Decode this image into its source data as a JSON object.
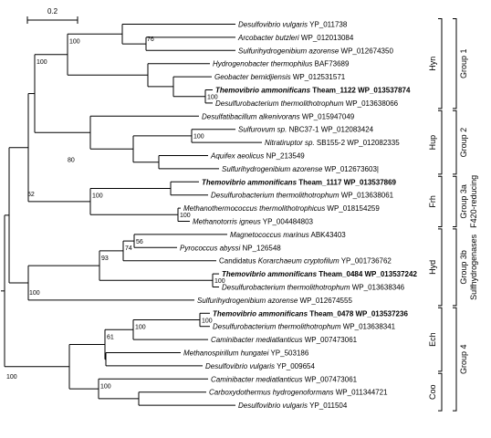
{
  "scale_bar": {
    "label": "0.2"
  },
  "leaves": [
    {
      "id": "L1",
      "pre": "",
      "name": "Desulfovibrio vulgaris",
      "acc": "YP_011738",
      "bold": false,
      "italic": true
    },
    {
      "id": "L2",
      "pre": "",
      "name": "Arcobacter butzleri",
      "acc": "WP_012013084",
      "bold": false,
      "italic": true
    },
    {
      "id": "L3",
      "pre": "",
      "name": "Sulfurihydrogenibium azorense",
      "acc": "WP_012674350",
      "bold": false,
      "italic": true
    },
    {
      "id": "L4",
      "pre": "",
      "name": "Hydrogenobacter thermophilus",
      "acc": "BAF73689",
      "bold": false,
      "italic": true
    },
    {
      "id": "L5",
      "pre": "",
      "name": "Geobacter bemidjiensis",
      "acc": "WP_012531571",
      "bold": false,
      "italic": true
    },
    {
      "id": "L6",
      "pre": "",
      "name": "Themovibrio ammonificans",
      "acc": "Theam_1122 WP_013537874",
      "bold": true,
      "italic": true
    },
    {
      "id": "L7",
      "pre": "",
      "name": "Desulfurobacterium thermolithotrophum",
      "acc": "WP_013638066",
      "bold": false,
      "italic": true
    },
    {
      "id": "L8",
      "pre": "",
      "name": "Desulfatibacillum alkenivorans",
      "acc": "WP_015947049",
      "bold": false,
      "italic": true
    },
    {
      "id": "L9",
      "pre": "",
      "name": "Sulfurovum sp.",
      "acc": "NBC37-1 WP_012083424",
      "bold": false,
      "italic": true
    },
    {
      "id": "L10",
      "pre": "",
      "name": "Nitratiruptor sp.",
      "acc": "SB155-2 WP_012082335",
      "bold": false,
      "italic": true
    },
    {
      "id": "L11",
      "pre": "",
      "name": "Aquifex aeolicus",
      "acc": "NP_213549",
      "bold": false,
      "italic": true
    },
    {
      "id": "L12",
      "pre": "",
      "name": "Sulfurihydrogenibium azorense",
      "acc": "WP_012673603|",
      "bold": false,
      "italic": true
    },
    {
      "id": "L13",
      "pre": "",
      "name": "Themovibrio ammonificans",
      "acc": "Theam_1117 WP_013537869",
      "bold": true,
      "italic": true
    },
    {
      "id": "L14",
      "pre": "",
      "name": "Desulfurobacterium thermolithotrophum",
      "acc": "WP_013638061",
      "bold": false,
      "italic": true
    },
    {
      "id": "L15",
      "pre": "",
      "name": "Methanothermococcus thermolithotrophicus",
      "acc": "WP_018154259",
      "bold": false,
      "italic": true
    },
    {
      "id": "L16",
      "pre": "",
      "name": "Methanotorris igneus",
      "acc": "YP_004484803",
      "bold": false,
      "italic": true
    },
    {
      "id": "L17",
      "pre": "",
      "name": "Magnetococcus marinus",
      "acc": "ABK43403",
      "bold": false,
      "italic": true
    },
    {
      "id": "L18",
      "pre": "",
      "name": "Pyrococcus abyssi",
      "acc": "NP_126548",
      "bold": false,
      "italic": true
    },
    {
      "id": "L19",
      "pre": "Candidatus ",
      "name": "Korarchaeum cryptofilum",
      "acc": "YP_001736762",
      "bold": false,
      "italic": true
    },
    {
      "id": "L20",
      "pre": "",
      "name": "Themovibrio ammonificans",
      "acc": "Theam_0484 WP_013537242",
      "bold": true,
      "italic": true
    },
    {
      "id": "L21",
      "pre": "",
      "name": "Desulfurobacterium thermolithotrophum",
      "acc": "WP_013638346",
      "bold": false,
      "italic": true
    },
    {
      "id": "L22",
      "pre": "",
      "name": "Sulfurihydrogenibium azorense",
      "acc": "WP_012674555",
      "bold": false,
      "italic": true
    },
    {
      "id": "L23",
      "pre": "",
      "name": "Themovibrio ammonificans",
      "acc": "Theam_0478 WP_013537236",
      "bold": true,
      "italic": true
    },
    {
      "id": "L24",
      "pre": "",
      "name": "Desulfurobacterium thermolithotrophum",
      "acc": "WP_013638341",
      "bold": false,
      "italic": true
    },
    {
      "id": "L25",
      "pre": "",
      "name": "Caminibacter mediatlanticus",
      "acc": "WP_007473061",
      "bold": false,
      "italic": true
    },
    {
      "id": "L26",
      "pre": "",
      "name": "Methanospirillum hungatei",
      "acc": "YP_503186",
      "bold": false,
      "italic": true
    },
    {
      "id": "L27",
      "pre": "",
      "name": "Desulfovibrio vulgaris",
      "acc": "YP_009654",
      "bold": false,
      "italic": true
    },
    {
      "id": "L28",
      "pre": "",
      "name": "Caminibacter mediatlanticus",
      "acc": "WP_007473061",
      "bold": false,
      "italic": true
    },
    {
      "id": "L29",
      "pre": "",
      "name": "Carboxydothermus hydrogenoformans",
      "acc": "WP_011344721",
      "bold": false,
      "italic": true
    },
    {
      "id": "L30",
      "pre": "",
      "name": "Desulfovibrio vulgaris",
      "acc": "YP_011504",
      "bold": false,
      "italic": true
    }
  ],
  "bootstrap": [
    {
      "node": "N_arc",
      "value": "76"
    },
    {
      "node": "N_g1",
      "value": "100"
    },
    {
      "node": "N_theam",
      "value": "100"
    },
    {
      "node": "N_g12",
      "value": "100"
    },
    {
      "node": "N_hup",
      "value": "80"
    },
    {
      "node": "N_sulf",
      "value": "100"
    },
    {
      "node": "N_52",
      "value": "52"
    },
    {
      "node": "N_frh",
      "value": "100"
    },
    {
      "node": "N_meth",
      "value": "100"
    },
    {
      "node": "N_56",
      "value": "56"
    },
    {
      "node": "N_74",
      "value": "74"
    },
    {
      "node": "N_93",
      "value": "93"
    },
    {
      "node": "N_theam2",
      "value": "100"
    },
    {
      "node": "N_hyd",
      "value": "100"
    },
    {
      "node": "N_root",
      "value": "100"
    },
    {
      "node": "N_theam3",
      "value": "100"
    },
    {
      "node": "N_ech2",
      "value": "100"
    },
    {
      "node": "N_61",
      "value": "61"
    },
    {
      "node": "N_coo",
      "value": "100"
    }
  ],
  "clades": [
    {
      "label": "Hyn",
      "from": "L1",
      "to": "L7"
    },
    {
      "label": "Hup",
      "from": "L8",
      "to": "L12"
    },
    {
      "label": "Frh",
      "from": "L13",
      "to": "L16"
    },
    {
      "label": "Hyd",
      "from": "L17",
      "to": "L22"
    },
    {
      "label": "Ech",
      "from": "L23",
      "to": "L27"
    },
    {
      "label": "Coo",
      "from": "L28",
      "to": "L30"
    }
  ],
  "groups": [
    {
      "line1": "Group 1",
      "line2": "",
      "from": "L1",
      "to": "L7"
    },
    {
      "line1": "Group 2",
      "line2": "",
      "from": "L8",
      "to": "L12"
    },
    {
      "line1": "Group 3a",
      "line2": "F420-reducing",
      "from": "L13",
      "to": "L16"
    },
    {
      "line1": "Group 3b",
      "line2": "Sulfhydrogenases",
      "from": "L17",
      "to": "L22"
    },
    {
      "line1": "Group 4",
      "line2": "",
      "from": "L23",
      "to": "L30"
    }
  ]
}
